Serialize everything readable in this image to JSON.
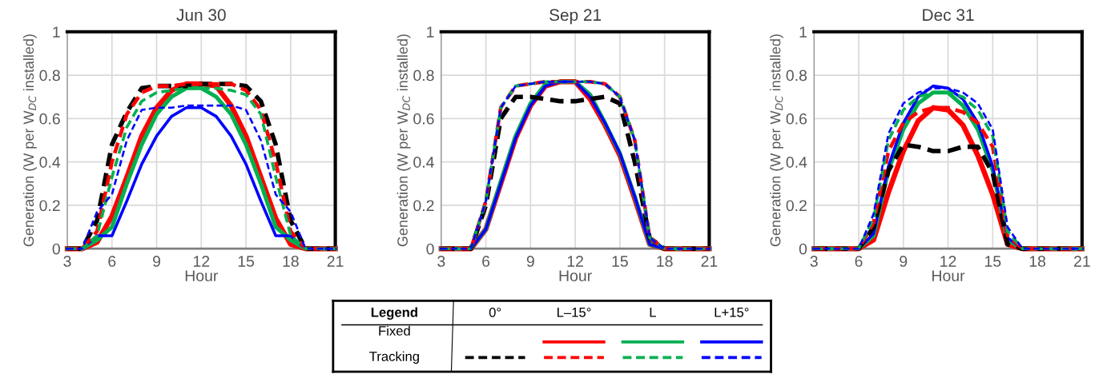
{
  "chart_data": [
    {
      "type": "line",
      "title": "Jun 30",
      "xlabel": "Hour",
      "ylabel": "Generation (W per W$_{DC}$ installed)",
      "x": [
        3,
        4,
        5,
        6,
        7,
        8,
        9,
        10,
        11,
        12,
        13,
        14,
        15,
        16,
        17,
        18,
        19,
        20,
        21
      ],
      "xlim": [
        3,
        21
      ],
      "xticks": [
        3,
        6,
        9,
        12,
        15,
        18,
        21
      ],
      "ylim": [
        0,
        1
      ],
      "yticks": [
        0,
        0.2,
        0.4,
        0.6,
        0.8,
        1
      ],
      "grid": true,
      "series": [
        {
          "color": "#ff0000",
          "line_style": "solid",
          "values": [
            0,
            0,
            0.03,
            0.15,
            0.33,
            0.52,
            0.65,
            0.73,
            0.76,
            0.76,
            0.75,
            0.66,
            0.52,
            0.33,
            0.14,
            0.02,
            0,
            0,
            0
          ]
        },
        {
          "color": "#00b050",
          "line_style": "solid",
          "values": [
            0,
            0,
            0.04,
            0.1,
            0.3,
            0.48,
            0.62,
            0.7,
            0.74,
            0.74,
            0.7,
            0.62,
            0.48,
            0.3,
            0.1,
            0.04,
            0,
            0,
            0
          ]
        },
        {
          "color": "#0000ff",
          "line_style": "solid",
          "values": [
            0,
            0,
            0.06,
            0.06,
            0.22,
            0.39,
            0.52,
            0.61,
            0.65,
            0.65,
            0.61,
            0.52,
            0.39,
            0.22,
            0.06,
            0.06,
            0,
            0,
            0
          ]
        },
        {
          "color": "#000000",
          "line_style": "dashed",
          "values": [
            0,
            0,
            0.13,
            0.48,
            0.63,
            0.74,
            0.75,
            0.75,
            0.75,
            0.76,
            0.76,
            0.76,
            0.75,
            0.68,
            0.48,
            0.13,
            0,
            0,
            0
          ]
        },
        {
          "color": "#ff0000",
          "line_style": "dashed",
          "values": [
            0,
            0,
            0.08,
            0.4,
            0.62,
            0.72,
            0.75,
            0.75,
            0.76,
            0.76,
            0.76,
            0.76,
            0.73,
            0.64,
            0.4,
            0.08,
            0,
            0,
            0
          ]
        },
        {
          "color": "#00b050",
          "line_style": "dashed",
          "values": [
            0,
            0,
            0.06,
            0.33,
            0.56,
            0.68,
            0.72,
            0.73,
            0.74,
            0.74,
            0.74,
            0.73,
            0.71,
            0.62,
            0.33,
            0.06,
            0,
            0,
            0
          ]
        },
        {
          "color": "#0000ff",
          "line_style": "dashed",
          "values": [
            0,
            0,
            0.17,
            0.25,
            0.5,
            0.64,
            0.65,
            0.65,
            0.66,
            0.66,
            0.66,
            0.66,
            0.64,
            0.5,
            0.25,
            0.17,
            0,
            0,
            0
          ]
        }
      ]
    },
    {
      "type": "line",
      "title": "Sep 21",
      "xlabel": "Hour",
      "ylabel": "Generation (W per W$_{DC}$ installed)",
      "x": [
        3,
        4,
        5,
        6,
        7,
        8,
        9,
        10,
        11,
        12,
        13,
        14,
        15,
        16,
        17,
        18,
        19,
        20,
        21
      ],
      "xlim": [
        3,
        21
      ],
      "xticks": [
        3,
        6,
        9,
        12,
        15,
        18,
        21
      ],
      "ylim": [
        0,
        1
      ],
      "yticks": [
        0,
        0.2,
        0.4,
        0.6,
        0.8,
        1
      ],
      "grid": true,
      "series": [
        {
          "color": "#ff0000",
          "line_style": "solid",
          "values": [
            0,
            0,
            0,
            0.09,
            0.3,
            0.51,
            0.66,
            0.75,
            0.77,
            0.77,
            0.69,
            0.57,
            0.43,
            0.23,
            0.02,
            0,
            0,
            0,
            0
          ]
        },
        {
          "color": "#00b050",
          "line_style": "solid",
          "values": [
            0,
            0,
            0,
            0.09,
            0.31,
            0.52,
            0.67,
            0.76,
            0.77,
            0.77,
            0.71,
            0.58,
            0.44,
            0.24,
            0.02,
            0,
            0,
            0,
            0
          ]
        },
        {
          "color": "#0000ff",
          "line_style": "solid",
          "values": [
            0,
            0,
            0,
            0.09,
            0.3,
            0.51,
            0.66,
            0.75,
            0.77,
            0.77,
            0.7,
            0.58,
            0.44,
            0.24,
            0.02,
            0,
            0,
            0,
            0
          ]
        },
        {
          "color": "#000000",
          "line_style": "dashed",
          "values": [
            0,
            0,
            0,
            0.2,
            0.6,
            0.7,
            0.7,
            0.69,
            0.68,
            0.68,
            0.69,
            0.7,
            0.67,
            0.4,
            0.05,
            0,
            0,
            0,
            0
          ]
        },
        {
          "color": "#ff0000",
          "line_style": "dashed",
          "values": [
            0,
            0,
            0,
            0.22,
            0.65,
            0.75,
            0.76,
            0.77,
            0.77,
            0.77,
            0.77,
            0.76,
            0.7,
            0.5,
            0.05,
            0,
            0,
            0,
            0
          ]
        },
        {
          "color": "#00b050",
          "line_style": "dashed",
          "values": [
            0,
            0,
            0,
            0.22,
            0.65,
            0.75,
            0.76,
            0.77,
            0.77,
            0.77,
            0.77,
            0.76,
            0.7,
            0.5,
            0.05,
            0,
            0,
            0,
            0
          ]
        },
        {
          "color": "#0000ff",
          "line_style": "dashed",
          "values": [
            0,
            0,
            0,
            0.22,
            0.65,
            0.75,
            0.76,
            0.77,
            0.77,
            0.77,
            0.77,
            0.76,
            0.7,
            0.5,
            0.05,
            0,
            0,
            0,
            0
          ]
        }
      ]
    },
    {
      "type": "line",
      "title": "Dec 31",
      "xlabel": "Hour",
      "ylabel": "Generation (W per W$_{DC}$ installed)",
      "x": [
        3,
        4,
        5,
        6,
        7,
        8,
        9,
        10,
        11,
        12,
        13,
        14,
        15,
        16,
        17,
        18,
        19,
        20,
        21
      ],
      "xlim": [
        3,
        21
      ],
      "xticks": [
        3,
        6,
        9,
        12,
        15,
        18,
        21
      ],
      "ylim": [
        0,
        1
      ],
      "yticks": [
        0,
        0.2,
        0.4,
        0.6,
        0.8,
        1
      ],
      "grid": true,
      "series": [
        {
          "color": "#ff0000",
          "line_style": "solid",
          "values": [
            0,
            0,
            0,
            0,
            0.04,
            0.26,
            0.45,
            0.59,
            0.65,
            0.64,
            0.57,
            0.43,
            0.25,
            0.02,
            0,
            0,
            0,
            0,
            0
          ]
        },
        {
          "color": "#00b050",
          "line_style": "solid",
          "values": [
            0,
            0,
            0,
            0,
            0.06,
            0.36,
            0.55,
            0.67,
            0.72,
            0.72,
            0.66,
            0.55,
            0.36,
            0.04,
            0,
            0,
            0,
            0,
            0
          ]
        },
        {
          "color": "#0000ff",
          "line_style": "solid",
          "values": [
            0,
            0,
            0,
            0,
            0.07,
            0.38,
            0.58,
            0.7,
            0.75,
            0.74,
            0.69,
            0.58,
            0.38,
            0.05,
            0,
            0,
            0,
            0,
            0
          ]
        },
        {
          "color": "#000000",
          "line_style": "dashed",
          "values": [
            0,
            0,
            0,
            0,
            0.1,
            0.36,
            0.48,
            0.47,
            0.45,
            0.45,
            0.47,
            0.47,
            0.35,
            0.02,
            0,
            0,
            0,
            0,
            0
          ]
        },
        {
          "color": "#ff0000",
          "line_style": "dashed",
          "values": [
            0,
            0,
            0,
            0,
            0.12,
            0.45,
            0.58,
            0.63,
            0.65,
            0.65,
            0.63,
            0.58,
            0.47,
            0.06,
            0,
            0,
            0,
            0,
            0
          ]
        },
        {
          "color": "#00b050",
          "line_style": "dashed",
          "values": [
            0,
            0,
            0,
            0,
            0.14,
            0.5,
            0.64,
            0.7,
            0.72,
            0.72,
            0.7,
            0.64,
            0.52,
            0.08,
            0,
            0,
            0,
            0,
            0
          ]
        },
        {
          "color": "#0000ff",
          "line_style": "dashed",
          "values": [
            0,
            0,
            0,
            0,
            0.16,
            0.53,
            0.67,
            0.72,
            0.74,
            0.74,
            0.72,
            0.67,
            0.55,
            0.1,
            0,
            0,
            0,
            0,
            0
          ]
        }
      ]
    },
    {
      "type": "other",
      "title": "Legend",
      "categories": [
        "0°",
        "L–15°",
        "L",
        "L+15°"
      ],
      "y_categories": [
        "Fixed",
        "Tracking"
      ]
    }
  ]
}
